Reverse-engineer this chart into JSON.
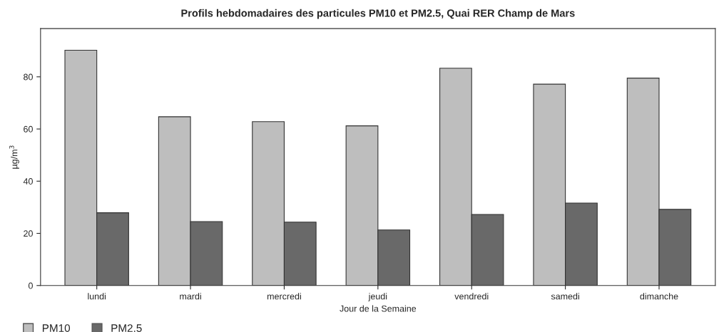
{
  "chart_data": {
    "type": "bar",
    "title": "Profils hebdomadaires des particules PM10 et PM2.5, Quai RER Champ de Mars",
    "xlabel": "Jour de la Semaine",
    "ylabel": "µg/m$^{3}$",
    "categories": [
      "lundi",
      "mardi",
      "mercredi",
      "jeudi",
      "vendredi",
      "samedi",
      "dimanche"
    ],
    "series": [
      {
        "name": "PM10",
        "color": "#bebebe",
        "values": [
          90.2,
          64.7,
          62.8,
          61.2,
          83.3,
          77.2,
          79.5
        ]
      },
      {
        "name": "PM2.5",
        "color": "#696969",
        "values": [
          27.9,
          24.5,
          24.3,
          21.3,
          27.2,
          31.6,
          29.2
        ]
      }
    ],
    "ylim": [
      0,
      98.5
    ],
    "yticks": [
      0,
      20,
      40,
      60,
      80
    ],
    "grid": false,
    "legend": "bottom left"
  }
}
